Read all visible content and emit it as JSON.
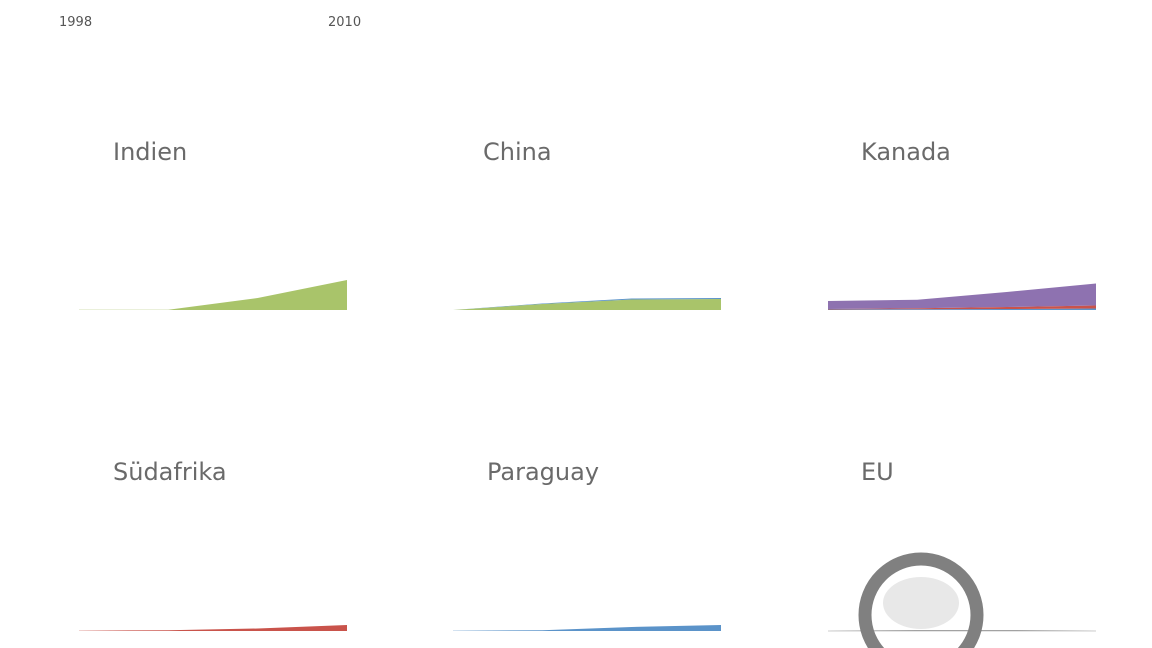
{
  "axis": {
    "start_label": "1998",
    "end_label": "2010"
  },
  "colors": {
    "green": "#a9c46a",
    "blue": "#5b93c9",
    "red": "#c9534b",
    "purple": "#8e72b0",
    "spinner": "#808080"
  },
  "chart_data": [
    {
      "type": "area",
      "title": "Indien",
      "x": [
        1998,
        2002,
        2006,
        2010
      ],
      "series": [
        {
          "color": "#a9c46a",
          "values": [
            0.2,
            0.3,
            12,
            30
          ]
        }
      ]
    },
    {
      "type": "area",
      "title": "China",
      "x": [
        1998,
        2002,
        2006,
        2010
      ],
      "series": [
        {
          "color": "#a9c46a",
          "values": [
            0,
            6,
            10.5,
            11
          ]
        },
        {
          "color": "#5b93c9",
          "values": [
            0,
            0.5,
            1,
            1
          ]
        }
      ]
    },
    {
      "type": "area",
      "title": "Kanada",
      "x": [
        1998,
        2002,
        2006,
        2010
      ],
      "series": [
        {
          "color": "#5b93c9",
          "values": [
            0.5,
            0.8,
            1,
            1.5
          ]
        },
        {
          "color": "#c9534b",
          "values": [
            0.5,
            1,
            2,
            3
          ]
        },
        {
          "color": "#8e72b0",
          "values": [
            8,
            8.5,
            15,
            22
          ]
        }
      ]
    },
    {
      "type": "area",
      "title": "Südafrika",
      "x": [
        1998,
        2002,
        2006,
        2010
      ],
      "series": [
        {
          "color": "#c9534b",
          "values": [
            0.3,
            0.8,
            2.5,
            6
          ]
        }
      ]
    },
    {
      "type": "area",
      "title": "Paraguay",
      "x": [
        1998,
        2002,
        2006,
        2010
      ],
      "series": [
        {
          "color": "#5b93c9",
          "values": [
            0.3,
            0.8,
            4,
            6
          ]
        }
      ]
    },
    {
      "type": "area",
      "title": "EU",
      "x": [
        1998,
        2002,
        2006,
        2010
      ],
      "series": [
        {
          "color": "#444444",
          "values": [
            0,
            0.5,
            0.5,
            0
          ]
        }
      ],
      "loading": true
    }
  ]
}
